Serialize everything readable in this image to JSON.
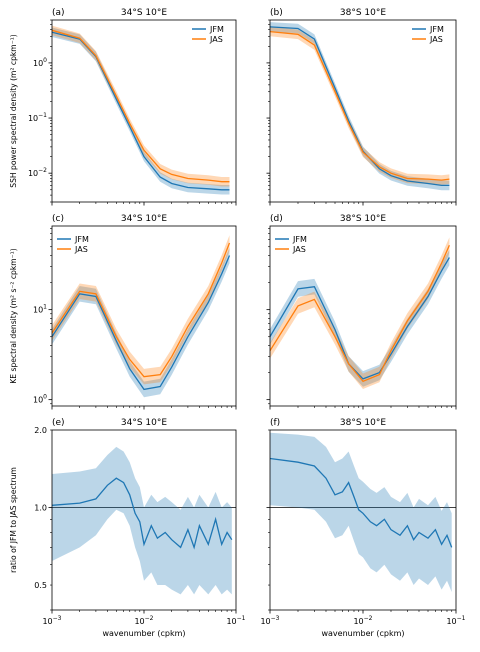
{
  "colors": {
    "jfm": "#1f77b4",
    "jas": "#ff7f0e"
  },
  "shared": {
    "xlabel": "wavenumber (cpkm)",
    "xlim": [
      0.001,
      0.1
    ],
    "xscale": "log",
    "x_ticklabels": [
      "10",
      "10",
      "10"
    ],
    "x_tickexp": [
      "-3",
      "-2",
      "-1"
    ]
  },
  "row_ylabels": [
    "SSH power spectral density (m² cpkm⁻¹)",
    "KE spectral density (m² s⁻² cpkm⁻¹)",
    "ratio of JFM to JAS spectrum"
  ],
  "chart_data": [
    {
      "type": "line",
      "panel": "(a)",
      "title": "34°S 10°E",
      "yscale": "log",
      "ylim": [
        0.003,
        6
      ],
      "y_ticks": [
        {
          "label": "10",
          "exp": "0",
          "value": 1
        },
        {
          "label": "10",
          "exp": "-1",
          "value": 0.1
        },
        {
          "label": "10",
          "exp": "-2",
          "value": 0.01
        }
      ],
      "legend": "top-right",
      "band": "shaded",
      "x": [
        0.001,
        0.002,
        0.003,
        0.005,
        0.007,
        0.01,
        0.015,
        0.02,
        0.03,
        0.05,
        0.07,
        0.085
      ],
      "series": [
        {
          "name": "JFM",
          "values": [
            3.6,
            2.7,
            1.3,
            0.22,
            0.07,
            0.02,
            0.0085,
            0.0065,
            0.0055,
            0.0052,
            0.005,
            0.005
          ]
        },
        {
          "name": "JAS",
          "values": [
            3.9,
            2.8,
            1.35,
            0.25,
            0.08,
            0.026,
            0.012,
            0.0095,
            0.008,
            0.0075,
            0.007,
            0.007
          ]
        }
      ]
    },
    {
      "type": "line",
      "panel": "(b)",
      "title": "38°S 10°E",
      "yscale": "log",
      "ylim": [
        0.003,
        6
      ],
      "y_ticks": [],
      "legend": "top-right",
      "band": "shaded",
      "x": [
        0.001,
        0.002,
        0.003,
        0.005,
        0.007,
        0.01,
        0.015,
        0.02,
        0.03,
        0.05,
        0.07,
        0.085
      ],
      "series": [
        {
          "name": "JFM",
          "values": [
            4.5,
            4.2,
            2.7,
            0.35,
            0.09,
            0.025,
            0.012,
            0.009,
            0.0072,
            0.0065,
            0.006,
            0.006
          ]
        },
        {
          "name": "JAS",
          "values": [
            3.7,
            3.3,
            2.1,
            0.3,
            0.08,
            0.024,
            0.013,
            0.01,
            0.008,
            0.0078,
            0.0075,
            0.0078
          ]
        }
      ]
    },
    {
      "type": "line",
      "panel": "(c)",
      "title": "34°S 10°E",
      "yscale": "log",
      "ylim": [
        0.85,
        85
      ],
      "y_ticks": [
        {
          "label": "10",
          "exp": "1",
          "value": 10
        },
        {
          "label": "10",
          "exp": "0",
          "value": 1
        }
      ],
      "legend": "top-left",
      "band": "shaded",
      "x": [
        0.001,
        0.002,
        0.003,
        0.005,
        0.007,
        0.01,
        0.015,
        0.02,
        0.03,
        0.05,
        0.07,
        0.085
      ],
      "series": [
        {
          "name": "JFM",
          "values": [
            5,
            15,
            14,
            4.5,
            2.2,
            1.3,
            1.4,
            2.3,
            5,
            12,
            25,
            40
          ]
        },
        {
          "name": "JAS",
          "values": [
            5.5,
            16,
            15,
            5,
            2.8,
            1.8,
            1.9,
            3,
            6.5,
            15,
            33,
            55
          ]
        }
      ]
    },
    {
      "type": "line",
      "panel": "(d)",
      "title": "38°S 10°E",
      "yscale": "log",
      "ylim": [
        0.85,
        85
      ],
      "y_ticks": [],
      "legend": "top-left",
      "band": "shaded",
      "x": [
        0.001,
        0.002,
        0.003,
        0.005,
        0.007,
        0.01,
        0.015,
        0.02,
        0.03,
        0.05,
        0.07,
        0.085
      ],
      "series": [
        {
          "name": "JFM",
          "values": [
            5,
            17,
            18,
            6,
            2.5,
            1.7,
            2,
            3.2,
            6.5,
            14,
            27,
            38
          ]
        },
        {
          "name": "JAS",
          "values": [
            3.5,
            11,
            13,
            5,
            2.5,
            1.6,
            1.9,
            3.5,
            7.5,
            16,
            33,
            52
          ]
        }
      ]
    },
    {
      "type": "line",
      "panel": "(e)",
      "title": "34°S 10°E",
      "yscale": "log",
      "ylim": [
        0.4,
        2
      ],
      "y_ticks": [
        {
          "label": "2.0",
          "value": 2
        },
        {
          "label": "1.0",
          "value": 1
        },
        {
          "label": "0.5",
          "value": 0.5
        }
      ],
      "reference_line": 1,
      "band": "shaded",
      "x": [
        0.001,
        0.002,
        0.003,
        0.004,
        0.005,
        0.006,
        0.007,
        0.008,
        0.009,
        0.01,
        0.012,
        0.014,
        0.017,
        0.02,
        0.025,
        0.03,
        0.035,
        0.04,
        0.05,
        0.06,
        0.07,
        0.08,
        0.09
      ],
      "series": [
        {
          "name": "JFM",
          "values": [
            1.02,
            1.04,
            1.08,
            1.22,
            1.3,
            1.25,
            1.12,
            0.95,
            0.88,
            0.72,
            0.85,
            0.76,
            0.8,
            0.75,
            0.7,
            0.82,
            0.7,
            0.85,
            0.72,
            0.9,
            0.72,
            0.8,
            0.75
          ]
        }
      ],
      "band_lower": [
        0.62,
        0.7,
        0.78,
        0.9,
        0.98,
        0.95,
        0.85,
        0.7,
        0.62,
        0.52,
        0.56,
        0.5,
        0.5,
        0.48,
        0.46,
        0.5,
        0.46,
        0.5,
        0.46,
        0.5,
        0.46,
        0.48,
        0.46
      ],
      "band_upper": [
        1.35,
        1.38,
        1.42,
        1.6,
        1.72,
        1.65,
        1.5,
        1.3,
        1.2,
        1.0,
        1.12,
        1.05,
        1.1,
        1.05,
        0.98,
        1.1,
        1.0,
        1.12,
        1.0,
        1.15,
        1.0,
        1.05,
        1.0
      ]
    },
    {
      "type": "line",
      "panel": "(f)",
      "title": "38°S 10°E",
      "yscale": "log",
      "ylim": [
        0.4,
        2
      ],
      "y_ticks": [],
      "reference_line": 1,
      "band": "shaded",
      "x": [
        0.001,
        0.002,
        0.003,
        0.004,
        0.005,
        0.006,
        0.007,
        0.008,
        0.009,
        0.01,
        0.012,
        0.014,
        0.017,
        0.02,
        0.025,
        0.03,
        0.035,
        0.04,
        0.05,
        0.06,
        0.07,
        0.08,
        0.09
      ],
      "series": [
        {
          "name": "JFM",
          "values": [
            1.55,
            1.5,
            1.45,
            1.3,
            1.12,
            1.15,
            1.25,
            1.1,
            0.98,
            0.95,
            0.88,
            0.85,
            0.9,
            0.82,
            0.78,
            0.85,
            0.75,
            0.8,
            0.76,
            0.82,
            0.72,
            0.78,
            0.7
          ]
        }
      ],
      "band_lower": [
        1.02,
        1.0,
        0.98,
        0.88,
        0.76,
        0.78,
        0.85,
        0.74,
        0.66,
        0.64,
        0.58,
        0.56,
        0.6,
        0.55,
        0.52,
        0.56,
        0.5,
        0.53,
        0.5,
        0.54,
        0.48,
        0.52,
        0.47
      ],
      "band_upper": [
        1.95,
        1.92,
        1.88,
        1.72,
        1.5,
        1.55,
        1.65,
        1.45,
        1.3,
        1.26,
        1.18,
        1.14,
        1.2,
        1.1,
        1.05,
        1.14,
        1.0,
        1.08,
        1.02,
        1.1,
        0.97,
        1.05,
        0.95
      ]
    }
  ]
}
